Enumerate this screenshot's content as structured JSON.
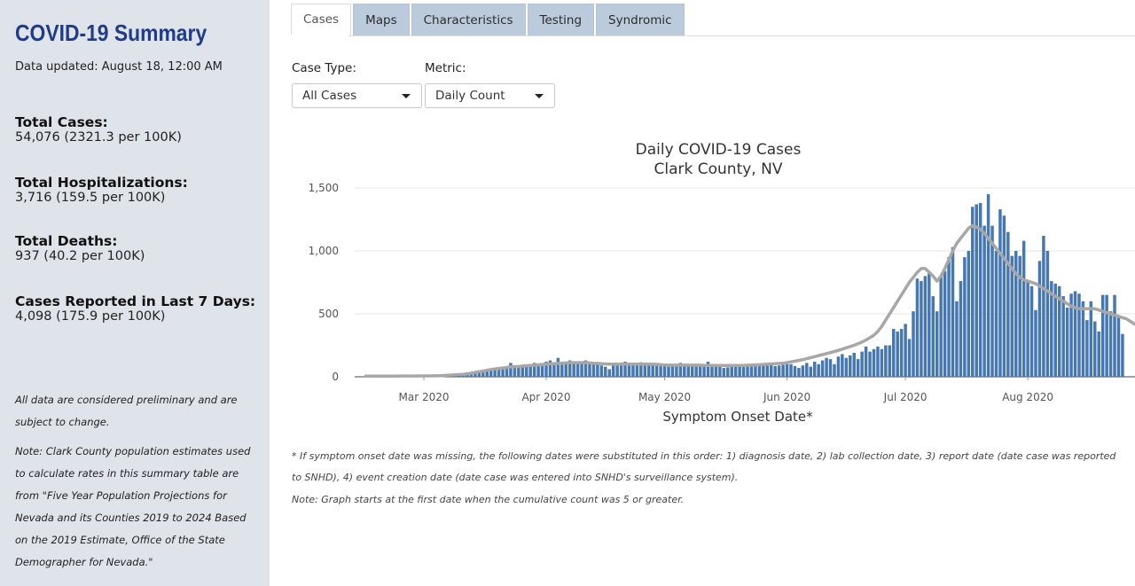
{
  "sidebar": {
    "title": "COVID-19 Summary",
    "updated": "Data updated: August 18, 12:00 AM",
    "stats": [
      {
        "label": "Total Cases:",
        "value": "54,076 (2321.3 per 100K)"
      },
      {
        "label": "Total Hospitalizations:",
        "value": "3,716 (159.5 per 100K)"
      },
      {
        "label": "Total Deaths:",
        "value": "937 (40.2 per 100K)"
      },
      {
        "label": "Cases Reported in Last 7 Days:",
        "value": "4,098 (175.9 per 100K)"
      }
    ],
    "note1": "All data are considered preliminary and are subject to change.",
    "note2": "Note: Clark County population estimates used to calculate rates in this summary table are from \"Five Year Population Projections for Nevada and its Counties 2019 to 2024 Based on the 2019 Estimate, Office of the State Demographer for Nevada.\""
  },
  "tabs": [
    "Cases",
    "Maps",
    "Characteristics",
    "Testing",
    "Syndromic"
  ],
  "active_tab": "Cases",
  "controls": {
    "case_type_label": "Case Type:",
    "case_type_value": "All Cases",
    "metric_label": "Metric:",
    "metric_value": "Daily Count"
  },
  "chart_data": {
    "type": "bar",
    "title": "Daily COVID-19 Cases",
    "subtitle": "Clark County, NV",
    "xlabel": "Symptom Onset Date*",
    "ylabel": "",
    "ylim": [
      0,
      1500
    ],
    "yticks": [
      "0",
      "500",
      "1,000",
      "1,500"
    ],
    "xticks": [
      "Mar 2020",
      "Apr 2020",
      "May 2020",
      "Jun 2020",
      "Jul 2020",
      "Aug 2020"
    ],
    "series": [
      {
        "type": "bar",
        "color": "#4577b2",
        "start_date": "2020-02-15",
        "values": [
          0,
          0,
          0,
          0,
          0,
          0,
          0,
          0,
          0,
          0,
          0,
          0,
          0,
          0,
          0,
          0,
          0,
          0,
          0,
          0,
          5,
          8,
          10,
          12,
          15,
          18,
          20,
          25,
          30,
          40,
          55,
          60,
          50,
          65,
          70,
          75,
          70,
          110,
          85,
          70,
          90,
          80,
          100,
          110,
          95,
          100,
          120,
          130,
          110,
          150,
          120,
          100,
          130,
          110,
          115,
          120,
          130,
          100,
          95,
          105,
          90,
          80,
          60,
          110,
          90,
          100,
          120,
          110,
          105,
          95,
          115,
          100,
          95,
          90,
          110,
          100,
          85,
          80,
          95,
          100,
          110,
          90,
          100,
          85,
          95,
          100,
          80,
          120,
          85,
          95,
          80,
          70,
          75,
          90,
          95,
          90,
          80,
          85,
          100,
          90,
          95,
          100,
          90,
          105,
          85,
          90,
          95,
          100,
          100,
          85,
          70,
          90,
          110,
          80,
          120,
          100,
          130,
          150,
          140,
          100,
          160,
          180,
          150,
          170,
          190,
          140,
          200,
          240,
          200,
          220,
          240,
          220,
          250,
          250,
          380,
          360,
          380,
          420,
          300,
          520,
          780,
          760,
          800,
          820,
          640,
          520,
          800,
          840,
          950,
          1030,
          600,
          760,
          950,
          1000,
          1350,
          1370,
          1380,
          1200,
          1450,
          1200,
          1000,
          1330,
          1280,
          1150,
          960,
          1000,
          960,
          1080,
          760,
          720,
          530,
          920,
          1120,
          1000,
          760,
          740,
          720,
          640,
          550,
          660,
          680,
          660,
          600,
          450,
          600,
          440,
          360,
          650,
          650,
          520,
          650,
          480,
          340,
          0
        ]
      },
      {
        "type": "line",
        "color": "#a7a7a7",
        "values": [
          5,
          5,
          5,
          5,
          5,
          5,
          5,
          5,
          5,
          6,
          6,
          6,
          6,
          6,
          7,
          7,
          7,
          7,
          8,
          8,
          10,
          12,
          14,
          16,
          18,
          20,
          24,
          28,
          35,
          40,
          45,
          52,
          58,
          62,
          66,
          70,
          74,
          78,
          80,
          82,
          85,
          88,
          90,
          92,
          95,
          98,
          100,
          102,
          104,
          106,
          108,
          110,
          112,
          112,
          113,
          113,
          112,
          110,
          108,
          106,
          104,
          102,
          100,
          100,
          100,
          100,
          100,
          100,
          100,
          100,
          100,
          100,
          100,
          100,
          98,
          96,
          94,
          92,
          92,
          92,
          92,
          92,
          92,
          92,
          92,
          92,
          90,
          90,
          90,
          90,
          90,
          90,
          90,
          90,
          90,
          90,
          90,
          92,
          92,
          94,
          96,
          98,
          100,
          102,
          104,
          106,
          108,
          112,
          118,
          124,
          130,
          136,
          144,
          152,
          160,
          168,
          176,
          184,
          192,
          200,
          210,
          220,
          230,
          240,
          250,
          262,
          276,
          292,
          310,
          330,
          360,
          400,
          450,
          500,
          550,
          600,
          650,
          700,
          750,
          790,
          830,
          860,
          860,
          830,
          800,
          760,
          800,
          860,
          930,
          1000,
          1060,
          1100,
          1140,
          1180,
          1200,
          1190,
          1170,
          1140,
          1100,
          1060,
          1020,
          980,
          940,
          900,
          860,
          820,
          790,
          770,
          760,
          750,
          740,
          720,
          700,
          680,
          660,
          640,
          620,
          600,
          580,
          560,
          550,
          540,
          540,
          540,
          540,
          540,
          530,
          520,
          510,
          500,
          490,
          480,
          470,
          460,
          440,
          420,
          400
        ]
      }
    ]
  },
  "footnote1": "* If symptom onset date was missing, the following dates were substituted in this order: 1) diagnosis date, 2) lab collection date, 3) report date (date case was reported to SNHD), 4) event creation date (date case was entered into SNHD's surveillance system).",
  "footnote2": "Note: Graph starts at the first date when the cumulative count was 5 or greater."
}
